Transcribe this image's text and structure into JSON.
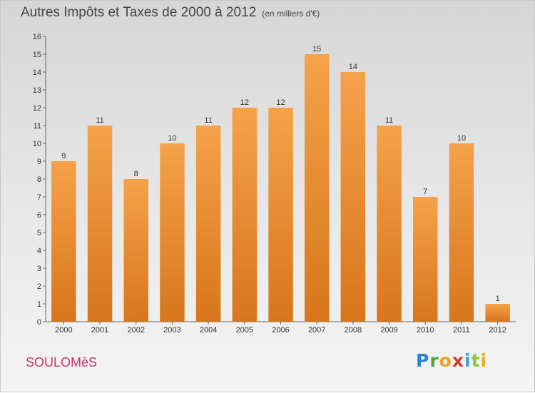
{
  "header": {
    "title": "Autres Impôts et Taxes de 2000 à 2012",
    "unit": "(en milliers d'€)"
  },
  "footer": {
    "commune": "SOULOMèS",
    "logo": "Proxiti"
  },
  "colors": {
    "bar_top": "#f5a24a",
    "bar_bottom": "#d8761c",
    "commune_text": "#cc3366",
    "axis": "#666666"
  },
  "chart_data": {
    "type": "bar",
    "title": "Autres Impôts et Taxes de 2000 à 2012",
    "subtitle": "(en milliers d'€)",
    "xlabel": "",
    "ylabel": "",
    "categories": [
      "2000",
      "2001",
      "2002",
      "2003",
      "2004",
      "2005",
      "2006",
      "2007",
      "2008",
      "2009",
      "2010",
      "2011",
      "2012"
    ],
    "values": [
      9,
      11,
      8,
      10,
      11,
      12,
      12,
      15,
      14,
      11,
      7,
      10,
      1
    ],
    "ylim": [
      0,
      16
    ],
    "yticks": [
      0,
      1,
      2,
      3,
      4,
      5,
      6,
      7,
      8,
      9,
      10,
      11,
      12,
      13,
      14,
      15,
      16
    ],
    "grid": false,
    "legend": "none"
  }
}
